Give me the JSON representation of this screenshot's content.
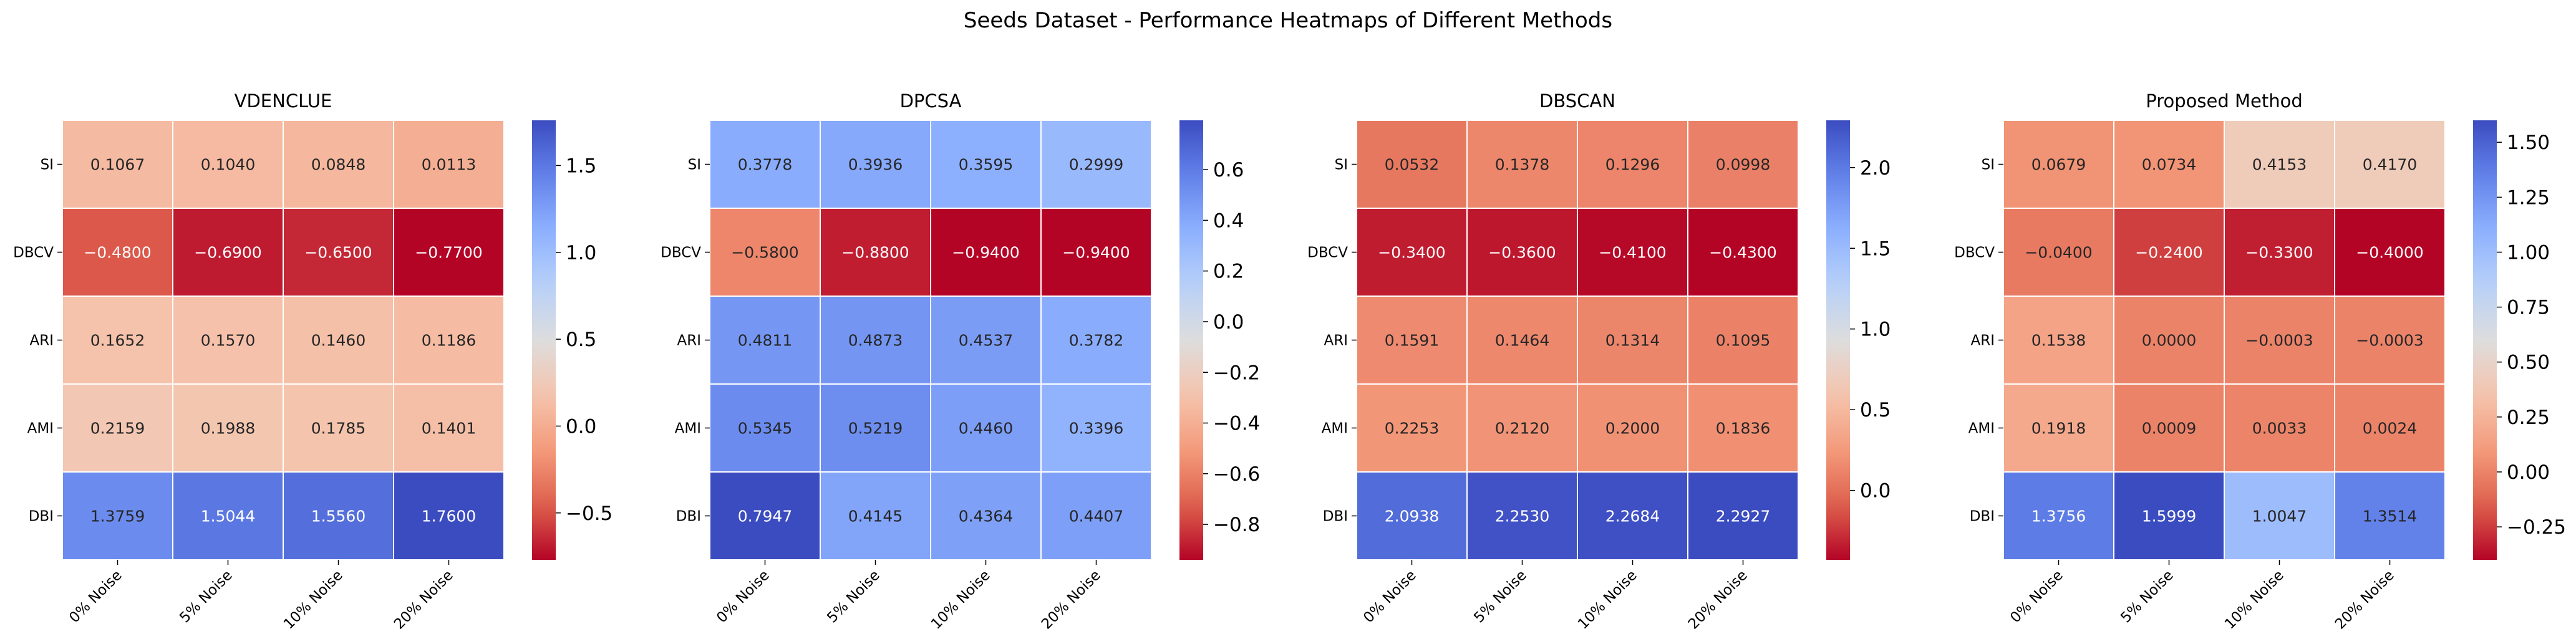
{
  "figure_title": "Seeds Dataset - Performance Heatmaps of Different Methods",
  "chart_data": [
    {
      "type": "heatmap",
      "title": "VDENCLUE",
      "rows": [
        "SI",
        "DBCV",
        "ARI",
        "AMI",
        "DBI"
      ],
      "columns": [
        "0% Noise",
        "5% Noise",
        "10% Noise",
        "20% Noise"
      ],
      "values": [
        [
          0.1067,
          0.104,
          0.0848,
          0.0113
        ],
        [
          -0.48,
          -0.69,
          -0.65,
          -0.77
        ],
        [
          0.1652,
          0.157,
          0.146,
          0.1186
        ],
        [
          0.2159,
          0.1988,
          0.1785,
          0.1401
        ],
        [
          1.3759,
          1.5044,
          1.556,
          1.76
        ]
      ],
      "cell_labels": [
        [
          "0.1067",
          "0.1040",
          "0.0848",
          "0.0113"
        ],
        [
          "−0.4800",
          "−0.6900",
          "−0.6500",
          "−0.7700"
        ],
        [
          "0.1652",
          "0.1570",
          "0.1460",
          "0.1186"
        ],
        [
          "0.2159",
          "0.1988",
          "0.1785",
          "0.1401"
        ],
        [
          "1.3759",
          "1.5044",
          "1.5560",
          "1.7600"
        ]
      ],
      "colormap": "coolwarm_r",
      "vmin": -0.77,
      "vmax": 1.76,
      "colorbar_ticks": [
        1.5,
        1.0,
        0.5,
        0.0,
        -0.5
      ],
      "colorbar_tick_labels": [
        "1.5",
        "1.0",
        "0.5",
        "0.0",
        "−0.5"
      ]
    },
    {
      "type": "heatmap",
      "title": "DPCSA",
      "rows": [
        "SI",
        "DBCV",
        "ARI",
        "AMI",
        "DBI"
      ],
      "columns": [
        "0% Noise",
        "5% Noise",
        "10% Noise",
        "20% Noise"
      ],
      "values": [
        [
          0.3778,
          0.3936,
          0.3595,
          0.2999
        ],
        [
          -0.58,
          -0.88,
          -0.94,
          -0.94
        ],
        [
          0.4811,
          0.4873,
          0.4537,
          0.3782
        ],
        [
          0.5345,
          0.5219,
          0.446,
          0.3396
        ],
        [
          0.7947,
          0.4145,
          0.4364,
          0.4407
        ]
      ],
      "cell_labels": [
        [
          "0.3778",
          "0.3936",
          "0.3595",
          "0.2999"
        ],
        [
          "−0.5800",
          "−0.8800",
          "−0.9400",
          "−0.9400"
        ],
        [
          "0.4811",
          "0.4873",
          "0.4537",
          "0.3782"
        ],
        [
          "0.5345",
          "0.5219",
          "0.4460",
          "0.3396"
        ],
        [
          "0.7947",
          "0.4145",
          "0.4364",
          "0.4407"
        ]
      ],
      "colormap": "coolwarm_r",
      "vmin": -0.94,
      "vmax": 0.7947,
      "colorbar_ticks": [
        0.6,
        0.4,
        0.2,
        0.0,
        -0.2,
        -0.4,
        -0.6,
        -0.8
      ],
      "colorbar_tick_labels": [
        "0.6",
        "0.4",
        "0.2",
        "0.0",
        "−0.2",
        "−0.4",
        "−0.6",
        "−0.8"
      ]
    },
    {
      "type": "heatmap",
      "title": "DBSCAN",
      "rows": [
        "SI",
        "DBCV",
        "ARI",
        "AMI",
        "DBI"
      ],
      "columns": [
        "0% Noise",
        "5% Noise",
        "10% Noise",
        "20% Noise"
      ],
      "values": [
        [
          0.0532,
          0.1378,
          0.1296,
          0.0998
        ],
        [
          -0.34,
          -0.36,
          -0.41,
          -0.43
        ],
        [
          0.1591,
          0.1464,
          0.1314,
          0.1095
        ],
        [
          0.2253,
          0.212,
          0.2,
          0.1836
        ],
        [
          2.0938,
          2.253,
          2.2684,
          2.2927
        ]
      ],
      "cell_labels": [
        [
          "0.0532",
          "0.1378",
          "0.1296",
          "0.0998"
        ],
        [
          "−0.3400",
          "−0.3600",
          "−0.4100",
          "−0.4300"
        ],
        [
          "0.1591",
          "0.1464",
          "0.1314",
          "0.1095"
        ],
        [
          "0.2253",
          "0.2120",
          "0.2000",
          "0.1836"
        ],
        [
          "2.0938",
          "2.2530",
          "2.2684",
          "2.2927"
        ]
      ],
      "colormap": "coolwarm_r",
      "vmin": -0.43,
      "vmax": 2.2927,
      "colorbar_ticks": [
        2.0,
        1.5,
        1.0,
        0.5,
        0.0
      ],
      "colorbar_tick_labels": [
        "2.0",
        "1.5",
        "1.0",
        "0.5",
        "0.0"
      ]
    },
    {
      "type": "heatmap",
      "title": "Proposed Method",
      "rows": [
        "SI",
        "DBCV",
        "ARI",
        "AMI",
        "DBI"
      ],
      "columns": [
        "0% Noise",
        "5% Noise",
        "10% Noise",
        "20% Noise"
      ],
      "values": [
        [
          0.0679,
          0.0734,
          0.4153,
          0.417
        ],
        [
          -0.04,
          -0.24,
          -0.33,
          -0.4
        ],
        [
          0.1538,
          0.0,
          -0.0003,
          -0.0003
        ],
        [
          0.1918,
          0.0009,
          0.0033,
          0.0024
        ],
        [
          1.3756,
          1.5999,
          1.0047,
          1.3514
        ]
      ],
      "cell_labels": [
        [
          "0.0679",
          "0.0734",
          "0.4153",
          "0.4170"
        ],
        [
          "−0.0400",
          "−0.2400",
          "−0.3300",
          "−0.4000"
        ],
        [
          "0.1538",
          "0.0000",
          "−0.0003",
          "−0.0003"
        ],
        [
          "0.1918",
          "0.0009",
          "0.0033",
          "0.0024"
        ],
        [
          "1.3756",
          "1.5999",
          "1.0047",
          "1.3514"
        ]
      ],
      "colormap": "coolwarm_r",
      "vmin": -0.4,
      "vmax": 1.5999,
      "colorbar_ticks": [
        1.5,
        1.25,
        1.0,
        0.75,
        0.5,
        0.25,
        0.0,
        -0.25
      ],
      "colorbar_tick_labels": [
        "1.50",
        "1.25",
        "1.00",
        "0.75",
        "0.50",
        "0.25",
        "0.00",
        "−0.25"
      ]
    }
  ]
}
